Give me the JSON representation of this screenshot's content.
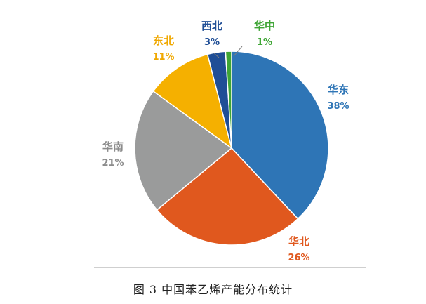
{
  "caption": "图 3  中国苯乙烯产能分布统计",
  "chart_data": {
    "type": "pie",
    "title": "",
    "slices": [
      {
        "name": "华东",
        "value": 38,
        "label": "38%",
        "color": "#2E75B6",
        "label_color": "#2E75B6"
      },
      {
        "name": "华北",
        "value": 26,
        "label": "26%",
        "color": "#E0581E",
        "label_color": "#E0581E"
      },
      {
        "name": "华南",
        "value": 21,
        "label": "21%",
        "color": "#9A9B9B",
        "label_color": "#8C8C8C"
      },
      {
        "name": "东北",
        "value": 11,
        "label": "11%",
        "color": "#F5B000",
        "label_color": "#F0A800"
      },
      {
        "name": "西北",
        "value": 3,
        "label": "3%",
        "color": "#1F4E96",
        "label_color": "#1F4E96"
      },
      {
        "name": "华中",
        "value": 1,
        "label": "1%",
        "color": "#3FA535",
        "label_color": "#3FA535"
      }
    ]
  }
}
